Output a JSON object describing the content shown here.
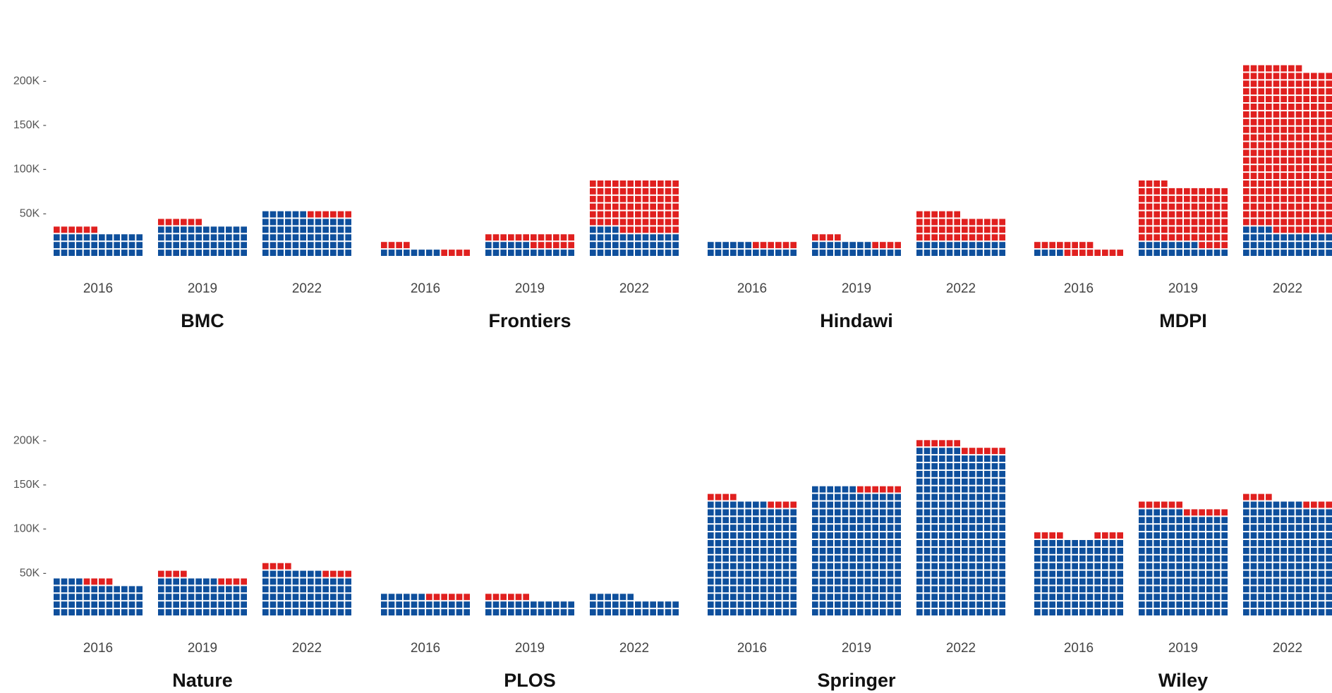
{
  "chart_data": {
    "type": "bar",
    "stacked": true,
    "style": "waffle",
    "facet_layout": "2 rows x 4 columns, shared y axis per row",
    "categories": [
      "2016",
      "2019",
      "2022"
    ],
    "y_ticks": [
      "50K",
      "100K",
      "150K",
      "200K"
    ],
    "ylim": [
      0,
      220000
    ],
    "grid": false,
    "legend": "none",
    "colors": {
      "blue": "#0E4F9C",
      "red": "#E0201F"
    },
    "panels": [
      {
        "title": "BMC",
        "bars": [
          {
            "year": "2016",
            "columns": [
              [
                26000,
                8000
              ],
              [
                26000,
                0
              ]
            ]
          },
          {
            "year": "2019",
            "columns": [
              [
                35000,
                8000
              ],
              [
                35000,
                0
              ]
            ]
          },
          {
            "year": "2022",
            "columns": [
              [
                52000,
                0
              ],
              [
                43000,
                8000
              ]
            ]
          }
        ]
      },
      {
        "title": "Frontiers",
        "bars": [
          {
            "year": "2016",
            "columns": [
              [
                9000,
                8000
              ],
              [
                8000,
                0
              ],
              [
                0,
                9000
              ]
            ]
          },
          {
            "year": "2019",
            "columns": [
              [
                17000,
                9000
              ],
              [
                9000,
                17000
              ]
            ]
          },
          {
            "year": "2022",
            "columns": [
              [
                35000,
                56000
              ],
              [
                26000,
                65000
              ],
              [
                26000,
                57000
              ]
            ]
          }
        ]
      },
      {
        "title": "Hindawi",
        "bars": [
          {
            "year": "2016",
            "columns": [
              [
                17000,
                0
              ],
              [
                8000,
                9000
              ]
            ]
          },
          {
            "year": "2019",
            "columns": [
              [
                17000,
                9000
              ],
              [
                17000,
                0
              ],
              [
                9000,
                8000
              ]
            ]
          },
          {
            "year": "2022",
            "columns": [
              [
                17000,
                35000
              ],
              [
                17000,
                26000
              ]
            ]
          }
        ]
      },
      {
        "title": "MDPI",
        "bars": [
          {
            "year": "2016",
            "columns": [
              [
                9000,
                8000
              ],
              [
                0,
                17000
              ],
              [
                0,
                9000
              ]
            ]
          },
          {
            "year": "2019",
            "columns": [
              [
                17000,
                66000
              ],
              [
                17000,
                57000
              ],
              [
                8000,
                66000
              ]
            ]
          },
          {
            "year": "2022",
            "columns": [
              [
                35000,
                184000
              ],
              [
                26000,
                193000
              ],
              [
                26000,
                185000
              ]
            ]
          }
        ]
      },
      {
        "title": "Nature",
        "bars": [
          {
            "year": "2016",
            "columns": [
              [
                43000,
                0
              ],
              [
                35000,
                8000
              ],
              [
                35000,
                0
              ]
            ]
          },
          {
            "year": "2019",
            "columns": [
              [
                43000,
                9000
              ],
              [
                43000,
                0
              ],
              [
                35000,
                8000
              ]
            ]
          },
          {
            "year": "2022",
            "columns": [
              [
                52000,
                8000
              ],
              [
                52000,
                0
              ],
              [
                43000,
                9000
              ]
            ]
          }
        ]
      },
      {
        "title": "PLOS",
        "bars": [
          {
            "year": "2016",
            "columns": [
              [
                26000,
                0
              ],
              [
                17000,
                9000
              ]
            ]
          },
          {
            "year": "2019",
            "columns": [
              [
                17000,
                9000
              ],
              [
                17000,
                0
              ]
            ]
          },
          {
            "year": "2022",
            "columns": [
              [
                26000,
                0
              ],
              [
                17000,
                0
              ]
            ]
          }
        ]
      },
      {
        "title": "Springer",
        "bars": [
          {
            "year": "2016",
            "columns": [
              [
                131000,
                9000
              ],
              [
                131000,
                0
              ],
              [
                122000,
                9000
              ]
            ]
          },
          {
            "year": "2019",
            "columns": [
              [
                148000,
                0
              ],
              [
                139000,
                9000
              ]
            ]
          },
          {
            "year": "2022",
            "columns": [
              [
                191000,
                9000
              ],
              [
                183000,
                8000
              ]
            ]
          }
        ]
      },
      {
        "title": "Wiley",
        "bars": [
          {
            "year": "2016",
            "columns": [
              [
                91000,
                9000
              ],
              [
                91000,
                0
              ],
              [
                83000,
                8000
              ]
            ]
          },
          {
            "year": "2019",
            "columns": [
              [
                122000,
                9000
              ],
              [
                113000,
                9000
              ]
            ]
          },
          {
            "year": "2022",
            "columns": [
              [
                131000,
                9000
              ],
              [
                131000,
                0
              ],
              [
                122000,
                9000
              ]
            ]
          }
        ]
      }
    ]
  }
}
